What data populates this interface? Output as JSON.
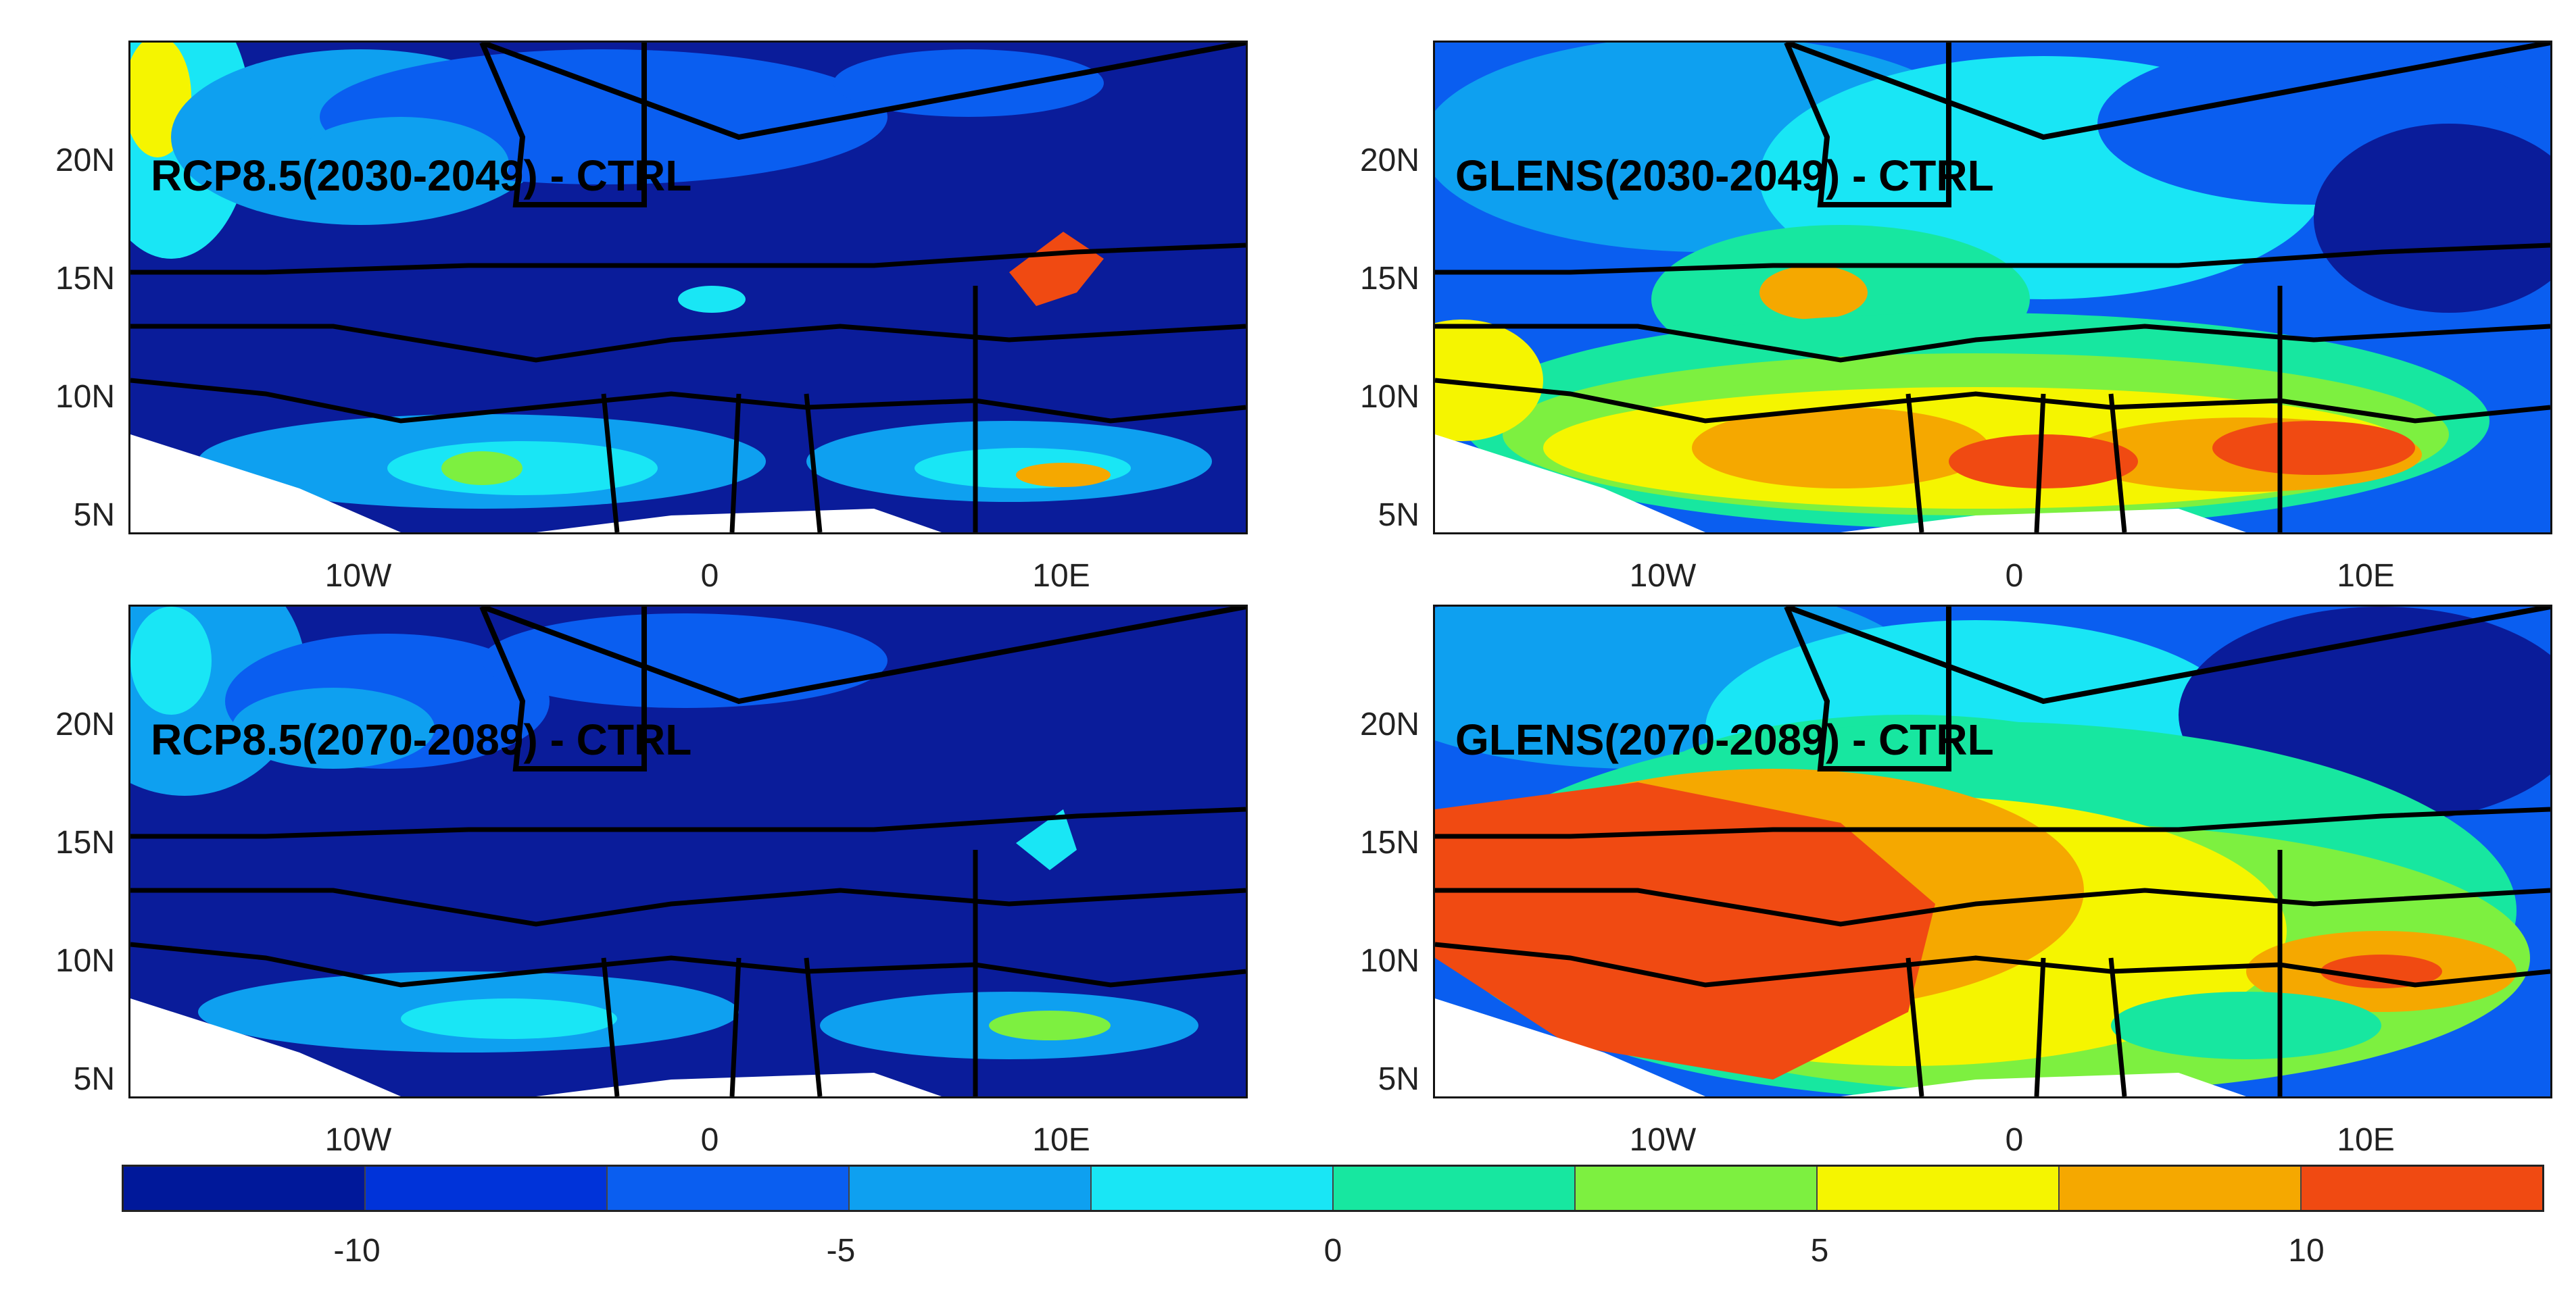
{
  "panels": [
    {
      "label": "RCP8.5(2030-2049) - CTRL",
      "palette": "cold"
    },
    {
      "label": "GLENS(2030-2049) - CTRL",
      "palette": "mixed"
    },
    {
      "label": "RCP8.5(2070-2089) - CTRL",
      "palette": "cold"
    },
    {
      "label": "GLENS(2070-2089) - CTRL",
      "palette": "warm"
    }
  ],
  "lat_ticks": [
    "20N",
    "15N",
    "10N",
    "5N"
  ],
  "lon_ticks": [
    "10W",
    "0",
    "10E"
  ],
  "colorbar": {
    "colors": [
      "#00189a",
      "#0033d9",
      "#0a5ef0",
      "#0ea0f0",
      "#19e6f5",
      "#17e7a0",
      "#7df040",
      "#f5f500",
      "#f5a800",
      "#f04a12"
    ],
    "ticks": [
      "-10",
      "-5",
      "0",
      "5",
      "10"
    ]
  },
  "map_colors": {
    "ocean": "#ffffff",
    "border": "#000000"
  }
}
